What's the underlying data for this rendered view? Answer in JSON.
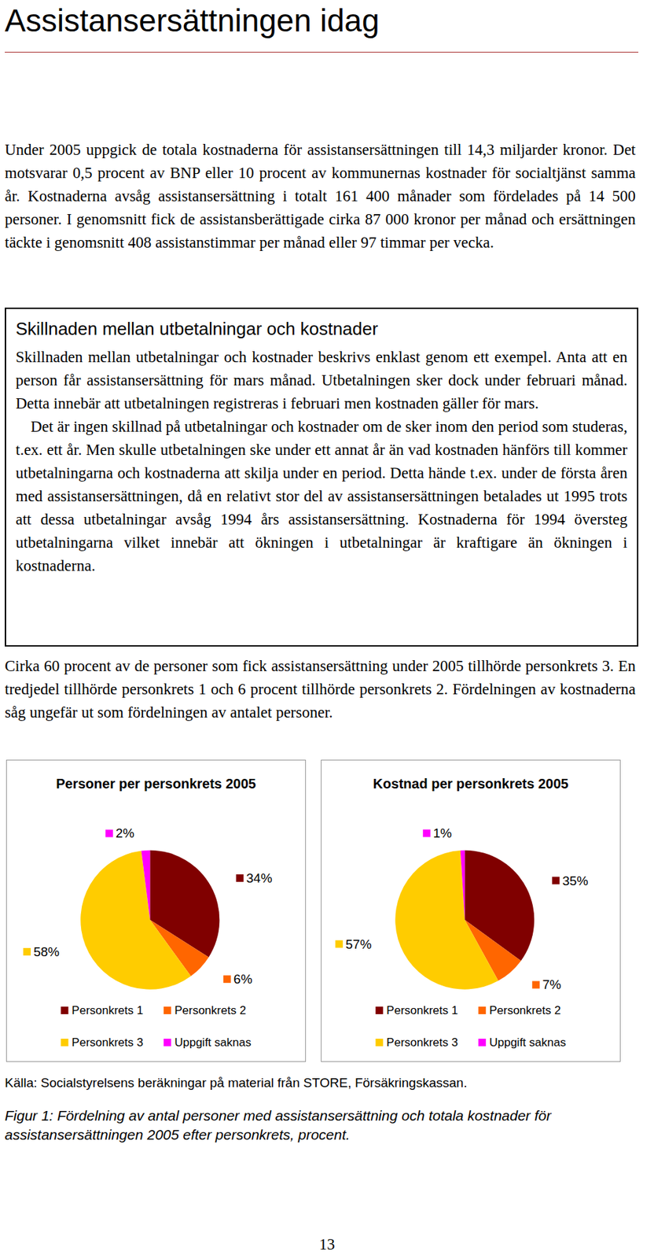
{
  "heading": "Assistansersättningen idag",
  "paragraphs_top": [
    "Under 2005 uppgick de totala kostnaderna för assistansersättningen till 14,3 miljarder kronor. Det motsvarar 0,5 procent av BNP eller 10 procent av kommunernas kostnader för socialtjänst samma år. Kostnaderna avsåg assistansersättning i totalt 161 400 månader som fördelades på 14 500 personer. I genomsnitt fick de assistansberättigade cirka 87 000 kronor per månad och ersättningen täckte i genomsnitt 408 assistanstimmar per månad eller 97 timmar per vecka."
  ],
  "box": {
    "title": "Skillnaden mellan utbetalningar och kostnader",
    "paragraphs": [
      "Skillnaden mellan utbetalningar och kostnader beskrivs enklast genom ett exempel. Anta att en person får assistansersättning för mars månad. Utbetalningen sker dock under februari månad. Detta innebär att utbetalningen registreras i februari men kostnaden gäller för mars.",
      "Det är ingen skillnad på utbetalningar och kostnader om de sker inom den period som studeras, t.ex. ett år. Men skulle utbetalningen ske under ett annat år än vad kostnaden hänförs till kommer utbetalningarna och kostnaderna att skilja under en period. Detta hände t.ex. under de första åren med assistansersättningen, då en relativt stor del av assistansersättningen betalades ut 1995 trots att dessa utbetalningar avsåg 1994 års assistansersättning. Kostnaderna för 1994 översteg utbetalningarna vilket innebär att ökningen i utbetalningar är kraftigare än ökningen i kostnaderna."
    ]
  },
  "paragraphs_bottom": [
    "Cirka 60 procent av de personer som fick assistansersättning under 2005 tillhörde personkrets 3. En tredjedel tillhörde personkrets 1 och 6 procent tillhörde personkrets 2. Fördelningen av kostnaderna såg ungefär ut som fördelningen av antalet personer."
  ],
  "chart_data": [
    {
      "type": "pie",
      "title": "Personer per personkrets 2005",
      "categories": [
        "Personkrets 1",
        "Personkrets 2",
        "Personkrets 3",
        "Uppgift saknas"
      ],
      "values": [
        34,
        6,
        58,
        2
      ],
      "value_labels": [
        "34%",
        "6%",
        "58%",
        "2%"
      ],
      "colors": [
        "#800000",
        "#ff6600",
        "#ffcc00",
        "#ff00ff"
      ],
      "data_labels": true,
      "legend": "bottom"
    },
    {
      "type": "pie",
      "title": "Kostnad per personkrets 2005",
      "categories": [
        "Personkrets 1",
        "Personkrets 2",
        "Personkrets 3",
        "Uppgift saknas"
      ],
      "values": [
        35,
        7,
        57,
        1
      ],
      "value_labels": [
        "35%",
        "7%",
        "57%",
        "1%"
      ],
      "colors": [
        "#800000",
        "#ff6600",
        "#ffcc00",
        "#ff00ff"
      ],
      "data_labels": true,
      "legend": "bottom"
    }
  ],
  "source": "Källa: Socialstyrelsens beräkningar på material från STORE, Försäkringskassan.",
  "caption": "Figur 1: Fördelning av antal personer med assistansersättning och totala kostnader för assistansersättningen 2005 efter personkrets, procent.",
  "page_number": "13"
}
